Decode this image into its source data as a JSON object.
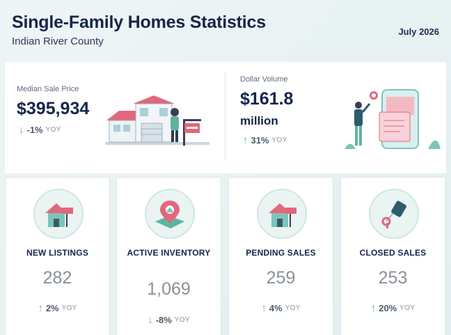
{
  "header": {
    "title": "Single-Family Homes Statistics",
    "subtitle": "Indian River County",
    "date": "July 2026"
  },
  "median_price": {
    "label": "Median Sale Price",
    "value": "$395,934",
    "change": "-1%",
    "yoy": "YOY",
    "direction": "down",
    "icon": "house-for-sale-illustration"
  },
  "dollar_volume": {
    "label": "Dollar Volume",
    "value": "$161.8",
    "unit": "million",
    "change": "31%",
    "yoy": "YOY",
    "direction": "up",
    "icon": "phone-listing-illustration"
  },
  "cards": [
    {
      "label": "NEW LISTINGS",
      "value": "282",
      "change": "2%",
      "yoy": "YOY",
      "direction": "up",
      "icon": "house-sign-icon"
    },
    {
      "label": "ACTIVE INVENTORY",
      "value": "1,069",
      "change": "-8%",
      "yoy": "YOY",
      "direction": "down",
      "icon": "map-pin-icon"
    },
    {
      "label": "PENDING SALES",
      "value": "259",
      "change": "4%",
      "yoy": "YOY",
      "direction": "up",
      "icon": "house-sign-icon"
    },
    {
      "label": "CLOSED SALES",
      "value": "253",
      "change": "20%",
      "yoy": "YOY",
      "direction": "up",
      "icon": "key-icon"
    }
  ],
  "arrows": {
    "up": "↑",
    "down": "↓"
  },
  "colors": {
    "up": "#5fb3a1",
    "down": "#e07a7f",
    "title": "#14254a",
    "accent_pink": "#e2677a",
    "accent_teal": "#7cc5b8"
  }
}
